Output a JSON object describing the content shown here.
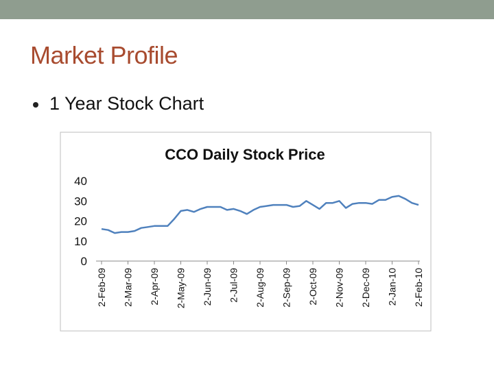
{
  "slide": {
    "title": "Market Profile",
    "bullets": [
      "1 Year Stock Chart"
    ]
  },
  "chart_data": {
    "type": "line",
    "title": "CCO Daily Stock Price",
    "categories": [
      "2-Feb-09",
      null,
      null,
      null,
      "2-Mar-09",
      null,
      null,
      null,
      "2-Apr-09",
      null,
      null,
      null,
      "2-May-09",
      null,
      null,
      null,
      "2-Jun-09",
      null,
      null,
      null,
      "2-Jul-09",
      null,
      null,
      null,
      "2-Aug-09",
      null,
      null,
      null,
      "2-Sep-09",
      null,
      null,
      null,
      "2-Oct-09",
      null,
      null,
      null,
      "2-Nov-09",
      null,
      null,
      null,
      "2-Dec-09",
      null,
      null,
      null,
      "2-Jan-10",
      null,
      null,
      null,
      "2-Feb-10"
    ],
    "values": [
      16,
      15.5,
      14,
      14.5,
      14.5,
      15,
      16.5,
      17,
      17.5,
      17.5,
      17.5,
      21,
      25,
      25.5,
      24.5,
      26,
      27,
      27,
      27,
      25.5,
      26,
      25,
      23.5,
      25.5,
      27,
      27.5,
      28,
      28,
      28,
      27,
      27.5,
      30,
      28,
      26,
      29,
      29,
      30,
      26.5,
      28.5,
      29,
      29,
      28.5,
      30.5,
      30.5,
      32,
      32.5,
      31,
      29,
      28
    ],
    "color": "#4f81bd",
    "ylim": [
      0,
      40
    ],
    "yticks": [
      0,
      10,
      20,
      30,
      40
    ],
    "grid": false
  }
}
